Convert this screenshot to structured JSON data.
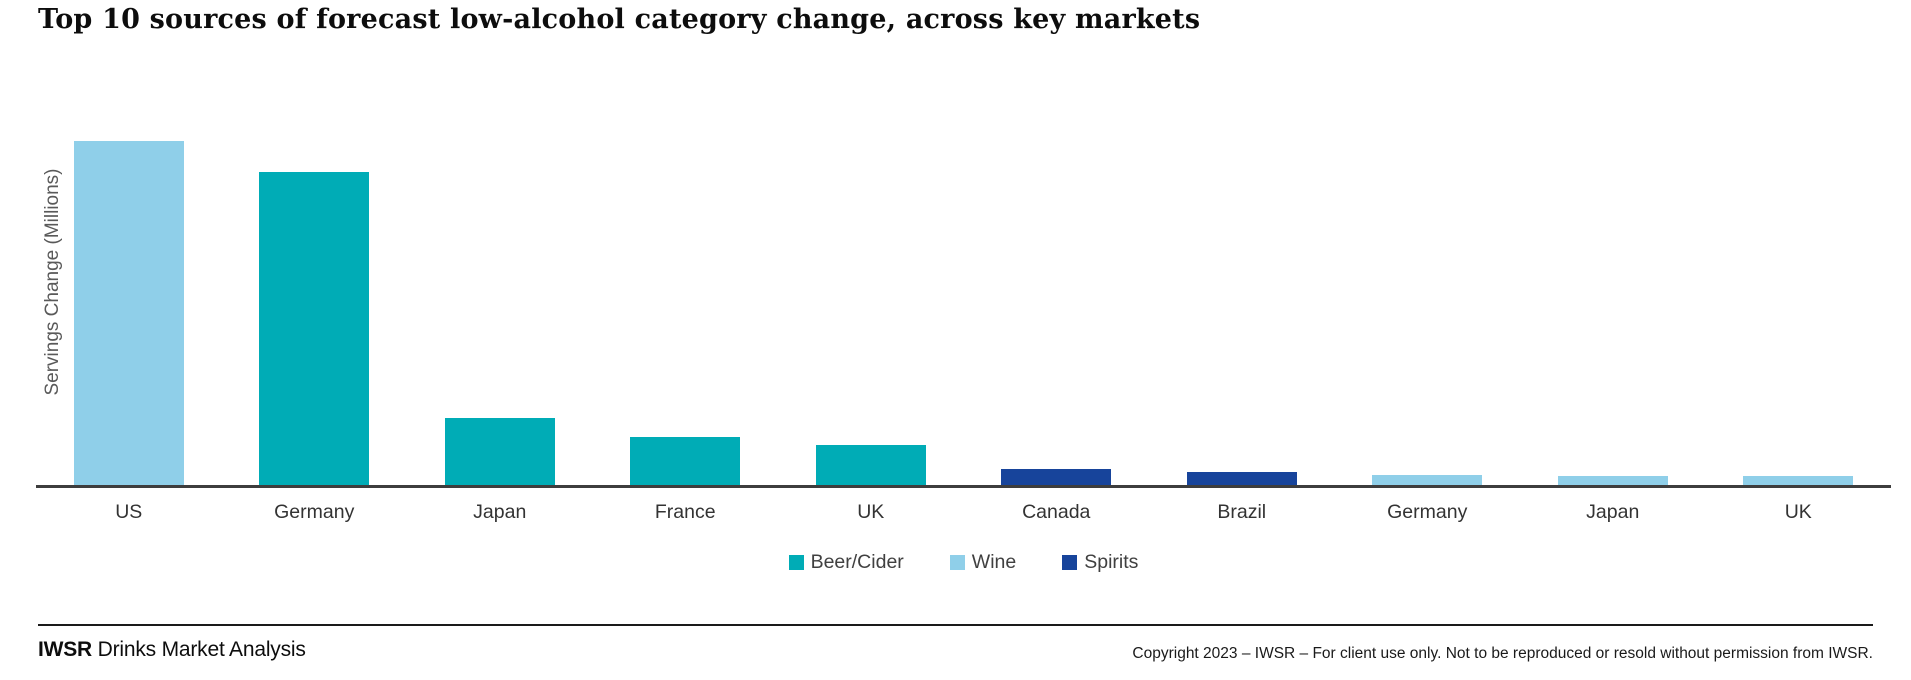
{
  "title": "Top 10 sources of forecast low-alcohol category change, across key markets",
  "colors": {
    "beer_cider": "#00ACB6",
    "wine": "#8FCFE9",
    "spirits": "#17449B",
    "axis_line": "#3d3d3d",
    "y_axis_label_text": "#595959",
    "category_text": "#333333",
    "legend_text": "#404040"
  },
  "legend": {
    "items": [
      {
        "label": "Beer/Cider",
        "color_key": "beer_cider"
      },
      {
        "label": "Wine",
        "color_key": "wine"
      },
      {
        "label": "Spirits",
        "color_key": "spirits"
      }
    ]
  },
  "chart_data": {
    "type": "bar",
    "title": "Top 10 sources of forecast low-alcohol category change, across key markets",
    "xlabel": "",
    "ylabel": "Servings Change (Millions)",
    "y_axis_tick_labels_shown": false,
    "grid": false,
    "legend_position": "bottom-center",
    "value_basis": "relative index estimated from bar heights; US = 100 (no numeric axis labels shown)",
    "categories": [
      "US",
      "Germany",
      "Japan",
      "France",
      "UK",
      "Canada",
      "Brazil",
      "Germany",
      "Japan",
      "UK"
    ],
    "bars": [
      {
        "market": "US",
        "series": "Wine",
        "value": 100
      },
      {
        "market": "Germany",
        "series": "Beer/Cider",
        "value": 91
      },
      {
        "market": "Japan",
        "series": "Beer/Cider",
        "value": 19.5
      },
      {
        "market": "France",
        "series": "Beer/Cider",
        "value": 14
      },
      {
        "market": "UK",
        "series": "Beer/Cider",
        "value": 11.6
      },
      {
        "market": "Canada",
        "series": "Spirits",
        "value": 4.7
      },
      {
        "market": "Brazil",
        "series": "Spirits",
        "value": 3.9
      },
      {
        "market": "Germany",
        "series": "Wine",
        "value": 2.9
      },
      {
        "market": "Japan",
        "series": "Wine",
        "value": 2.7
      },
      {
        "market": "UK",
        "series": "Wine",
        "value": 2.7
      }
    ]
  },
  "footer": {
    "brand_bold": "IWSR",
    "brand_rest": " Drinks Market Analysis",
    "copyright": "Copyright 2023 – IWSR – For client use only. Not to be reproduced or resold without permission from IWSR."
  }
}
